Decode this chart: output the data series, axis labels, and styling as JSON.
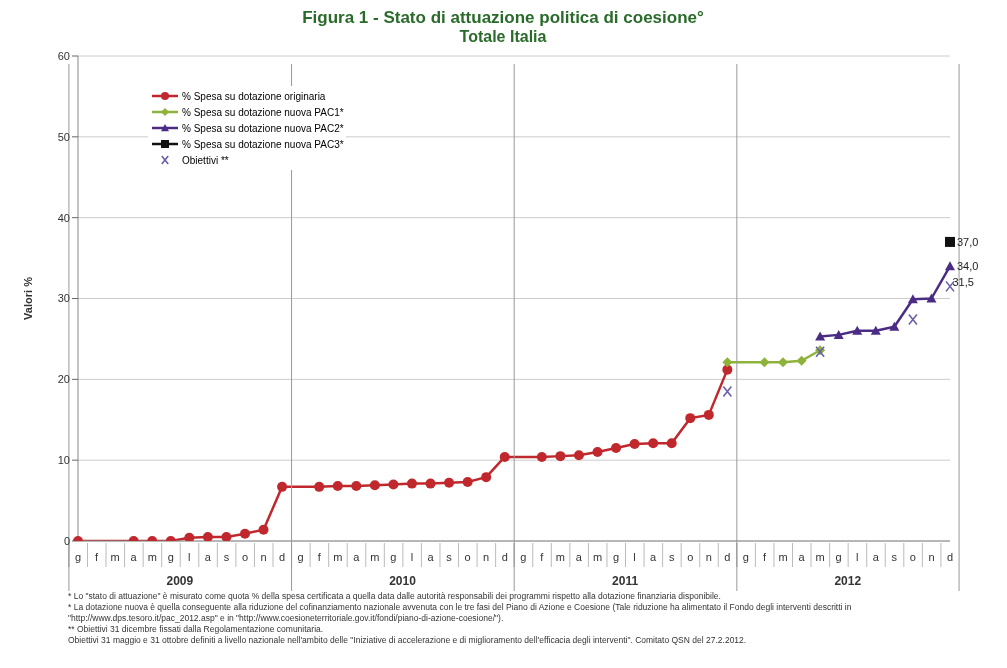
{
  "chart_data": {
    "type": "line",
    "title": "Figura 1 - Stato di attuazione politica di coesione°",
    "subtitle": "Totale Italia",
    "ylabel": "Valori %",
    "categories": [
      "g",
      "f",
      "m",
      "a",
      "m",
      "g",
      "l",
      "a",
      "s",
      "o",
      "n",
      "d",
      "g",
      "f",
      "m",
      "a",
      "m",
      "g",
      "l",
      "a",
      "s",
      "o",
      "n",
      "d",
      "g",
      "f",
      "m",
      "a",
      "m",
      "g",
      "l",
      "a",
      "s",
      "o",
      "n",
      "d",
      "g",
      "f",
      "m",
      "a",
      "m",
      "g",
      "l",
      "a",
      "s",
      "o",
      "n",
      "d"
    ],
    "series": [
      {
        "name": "% Spesa su dotazione originaria",
        "color": "#c0282d",
        "marker": "circle",
        "values": [
          0,
          null,
          null,
          0,
          0,
          0,
          0.4,
          0.5,
          0.5,
          0.9,
          1.4,
          6.7,
          null,
          6.7,
          6.8,
          6.8,
          6.9,
          7.0,
          7.1,
          7.1,
          7.2,
          7.3,
          7.9,
          10.4,
          null,
          10.4,
          10.5,
          10.6,
          11.0,
          11.5,
          12.0,
          12.1,
          12.1,
          15.2,
          15.6,
          21.2,
          null,
          null,
          null,
          null,
          null,
          null,
          null,
          null,
          null,
          null,
          null,
          null
        ]
      },
      {
        "name": "% Spesa su dotazione nuova PAC1*",
        "color": "#8db33a",
        "marker": "diamond",
        "values": [
          null,
          null,
          null,
          null,
          null,
          null,
          null,
          null,
          null,
          null,
          null,
          null,
          null,
          null,
          null,
          null,
          null,
          null,
          null,
          null,
          null,
          null,
          null,
          null,
          null,
          null,
          null,
          null,
          null,
          null,
          null,
          null,
          null,
          null,
          null,
          22.1,
          null,
          22.1,
          22.1,
          22.3,
          23.6,
          null,
          null,
          null,
          null,
          null,
          null,
          null
        ]
      },
      {
        "name": "% Spesa su dotazione nuova PAC2*",
        "color": "#4b2c85",
        "marker": "triangle",
        "values": [
          null,
          null,
          null,
          null,
          null,
          null,
          null,
          null,
          null,
          null,
          null,
          null,
          null,
          null,
          null,
          null,
          null,
          null,
          null,
          null,
          null,
          null,
          null,
          null,
          null,
          null,
          null,
          null,
          null,
          null,
          null,
          null,
          null,
          null,
          null,
          null,
          null,
          null,
          null,
          null,
          25.3,
          25.5,
          26.0,
          26.0,
          26.5,
          29.9,
          30.0,
          34.0
        ],
        "value_labels": [
          null,
          null,
          null,
          null,
          null,
          null,
          null,
          null,
          null,
          null,
          null,
          null,
          null,
          null,
          null,
          null,
          null,
          null,
          null,
          null,
          null,
          null,
          null,
          null,
          null,
          null,
          null,
          null,
          null,
          null,
          null,
          null,
          null,
          null,
          null,
          null,
          null,
          null,
          null,
          null,
          null,
          null,
          null,
          null,
          null,
          null,
          null,
          "34,0"
        ]
      },
      {
        "name": "% Spesa su dotazione nuova PAC3*",
        "color": "#111111",
        "marker": "square",
        "values": [
          null,
          null,
          null,
          null,
          null,
          null,
          null,
          null,
          null,
          null,
          null,
          null,
          null,
          null,
          null,
          null,
          null,
          null,
          null,
          null,
          null,
          null,
          null,
          null,
          null,
          null,
          null,
          null,
          null,
          null,
          null,
          null,
          null,
          null,
          null,
          null,
          null,
          null,
          null,
          null,
          null,
          null,
          null,
          null,
          null,
          null,
          null,
          37.0
        ],
        "value_labels": [
          null,
          null,
          null,
          null,
          null,
          null,
          null,
          null,
          null,
          null,
          null,
          null,
          null,
          null,
          null,
          null,
          null,
          null,
          null,
          null,
          null,
          null,
          null,
          null,
          null,
          null,
          null,
          null,
          null,
          null,
          null,
          null,
          null,
          null,
          null,
          null,
          null,
          null,
          null,
          null,
          null,
          null,
          null,
          null,
          null,
          null,
          null,
          "37,0"
        ]
      },
      {
        "name": "Obiettivi **",
        "type": "scatter",
        "color": "#6b5fa8",
        "marker": "cross",
        "values": [
          null,
          null,
          null,
          null,
          null,
          null,
          null,
          null,
          null,
          null,
          null,
          null,
          null,
          null,
          null,
          null,
          null,
          null,
          null,
          null,
          null,
          null,
          null,
          null,
          null,
          null,
          null,
          null,
          null,
          null,
          null,
          null,
          null,
          null,
          null,
          18.5,
          null,
          null,
          null,
          null,
          23.4,
          null,
          null,
          null,
          null,
          27.4,
          null,
          31.5
        ],
        "value_labels": [
          null,
          null,
          null,
          null,
          null,
          null,
          null,
          null,
          null,
          null,
          null,
          null,
          null,
          null,
          null,
          null,
          null,
          null,
          null,
          null,
          null,
          null,
          null,
          null,
          null,
          null,
          null,
          null,
          null,
          null,
          null,
          null,
          null,
          null,
          null,
          null,
          null,
          null,
          null,
          null,
          null,
          null,
          null,
          null,
          null,
          null,
          null,
          "31,5"
        ]
      }
    ],
    "ylim": [
      0,
      60
    ],
    "yticks": [
      0,
      10,
      20,
      30,
      40,
      50,
      60
    ],
    "grid": "y",
    "legend": "top left",
    "annotations": [
      "2009",
      "2010",
      "2011",
      "2012",
      "* Lo \"stato di attuazione\" è misurato come quota % della spesa certificata a quella data dalle autorità responsabili dei programmi rispetto alla dotazione finanziaria disponibile.",
      "* La dotazione nuova è quella conseguente alla riduzione del cofinanziamento nazionale avvenuta con le tre fasi del Piano di Azione e Coesione (Tale riduzione ha alimentato il Fondo degli interventi descritti in \"http://www.dps.tesoro.it/pac_2012.asp\" e in \"http://www.coesioneterritoriale.gov.it/fondi/piano-di-azione-coesione/\").",
      "** Obiettivi 31 dicembre fissati dalla Regolamentazione comunitaria.",
      "Obiettivi 31 maggio e 31 ottobre definiti a livello nazionale nell'ambito delle \"Iniziative di accelerazione e di miglioramento dell'efficacia degli interventi\". Comitato QSN del 27.2.2012."
    ]
  }
}
